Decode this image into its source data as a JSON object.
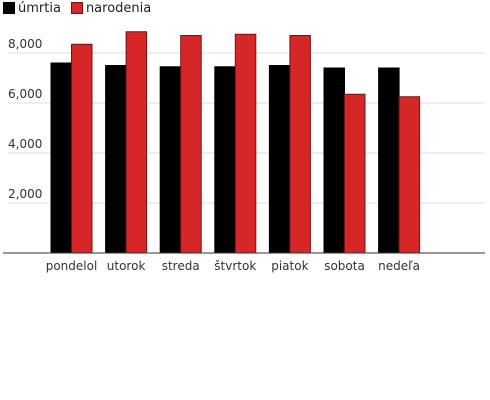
{
  "chart_data": {
    "type": "bar",
    "title": "",
    "xlabel": "",
    "ylabel": "",
    "categories": [
      "pondelol",
      "utorok",
      "streda",
      "štvrtok",
      "piatok",
      "sobota",
      "nedeľa"
    ],
    "series": [
      {
        "name": "úmrtia",
        "color": "#000000",
        "values": [
          7600,
          7500,
          7450,
          7450,
          7500,
          7400,
          7400
        ]
      },
      {
        "name": "narodenia",
        "color": "#d62728",
        "values": [
          8350,
          8850,
          8700,
          8750,
          8700,
          6350,
          6250
        ]
      }
    ],
    "ylim": [
      0,
      9000
    ],
    "yticks": [
      2000,
      4000,
      6000,
      8000
    ],
    "ytick_labels": [
      "2,000",
      "4,000",
      "6,000",
      "8,000"
    ],
    "grid": true,
    "legend_position": "top-left"
  }
}
